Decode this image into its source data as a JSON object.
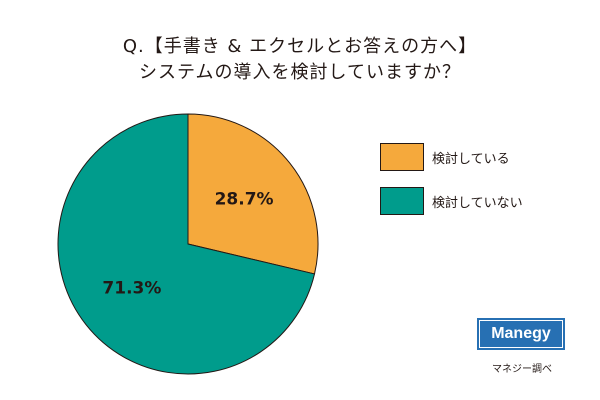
{
  "title": {
    "line1": "Q.【手書き & エクセルとお答えの方へ】",
    "line2": "システムの導入を検討していますか？"
  },
  "colors": {
    "considering": "#f5a93c",
    "not_considering": "#009c8c",
    "outline": "#231815",
    "logo_bg": "#2770b3"
  },
  "chart_data": {
    "type": "pie",
    "slices": [
      {
        "label": "検討している",
        "value": 28.7,
        "value_label": "28.7%",
        "color": "#f5a93c"
      },
      {
        "label": "検討していない",
        "value": 71.3,
        "value_label": "71.3%",
        "color": "#009c8c"
      }
    ],
    "start_angle": "12 o'clock",
    "direction": "clockwise",
    "legend_position": "right"
  },
  "logo": {
    "text": "Manegy"
  },
  "source": "マネジー調べ"
}
